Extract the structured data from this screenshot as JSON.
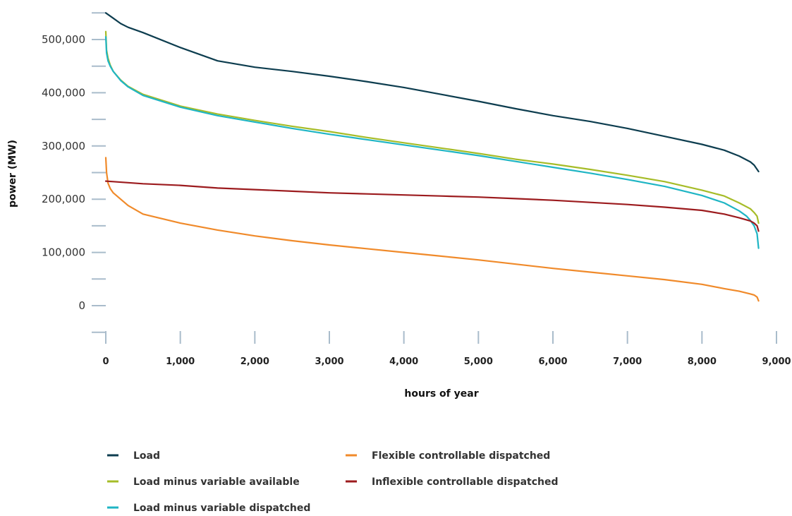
{
  "chart_data": {
    "type": "line",
    "title": "",
    "xlabel": "hours of year",
    "ylabel": "power (MW)",
    "xlim": [
      0,
      9000
    ],
    "ylim": [
      -50000,
      550000
    ],
    "x_ticks": [
      0,
      1000,
      2000,
      3000,
      4000,
      5000,
      6000,
      7000,
      8000,
      9000
    ],
    "x_tick_labels": [
      "0",
      "1,000",
      "2,000",
      "3,000",
      "4,000",
      "5,000",
      "6,000",
      "7,000",
      "8,000",
      "9,000"
    ],
    "y_ticks": [
      0,
      100000,
      200000,
      300000,
      400000,
      500000
    ],
    "y_tick_labels": [
      "0",
      "100,000",
      "200,000",
      "300,000",
      "400,000",
      "500,000"
    ],
    "y_minor_ticks": [
      -50000,
      50000,
      150000,
      250000,
      350000,
      450000,
      550000
    ],
    "grid": false,
    "legend_position": "bottom",
    "series": [
      {
        "name": "Load",
        "color": "#0d3d4f",
        "x": [
          0,
          100,
          200,
          300,
          500,
          1000,
          1500,
          2000,
          2500,
          3000,
          3500,
          4000,
          4500,
          5000,
          5500,
          6000,
          6500,
          7000,
          7500,
          8000,
          8300,
          8500,
          8650,
          8700,
          8760
        ],
        "y": [
          550000,
          540000,
          530000,
          523000,
          513000,
          485000,
          460000,
          448000,
          440000,
          431000,
          421000,
          410000,
          397000,
          384000,
          370000,
          357000,
          346000,
          333000,
          318000,
          303000,
          292000,
          281000,
          270000,
          264000,
          252000
        ]
      },
      {
        "name": "Load minus variable available",
        "color": "#a6bc28",
        "x": [
          0,
          10,
          30,
          60,
          100,
          200,
          300,
          500,
          1000,
          1500,
          2000,
          2500,
          3000,
          3500,
          4000,
          4500,
          5000,
          5500,
          6000,
          6500,
          7000,
          7500,
          8000,
          8300,
          8500,
          8650,
          8700,
          8740,
          8760
        ],
        "y": [
          515000,
          480000,
          465000,
          452000,
          440000,
          424000,
          412000,
          397000,
          375000,
          360000,
          348000,
          337000,
          327000,
          316000,
          306000,
          296000,
          286000,
          275000,
          266000,
          256000,
          245000,
          233000,
          217000,
          206000,
          193000,
          182000,
          175000,
          168000,
          155000
        ]
      },
      {
        "name": "Load minus variable dispatched",
        "color": "#1fb5c4",
        "x": [
          0,
          10,
          30,
          60,
          100,
          200,
          300,
          500,
          1000,
          1500,
          2000,
          2500,
          3000,
          3500,
          4000,
          4500,
          5000,
          5500,
          6000,
          6500,
          7000,
          7500,
          8000,
          8300,
          8500,
          8600,
          8650,
          8700,
          8740,
          8760
        ],
        "y": [
          505000,
          475000,
          460000,
          450000,
          440000,
          423000,
          411000,
          395000,
          373000,
          357000,
          345000,
          333000,
          322000,
          312000,
          302000,
          292000,
          282000,
          271000,
          260000,
          249000,
          237000,
          224000,
          207000,
          193000,
          178000,
          168000,
          160000,
          150000,
          135000,
          108000
        ]
      },
      {
        "name": "Flexible controllable dispatched",
        "color": "#f08a2a",
        "x": [
          0,
          10,
          30,
          60,
          100,
          200,
          300,
          500,
          1000,
          1500,
          2000,
          2500,
          3000,
          3500,
          4000,
          4500,
          5000,
          5500,
          6000,
          6500,
          7000,
          7500,
          8000,
          8300,
          8500,
          8650,
          8700,
          8740,
          8760
        ],
        "y": [
          278000,
          250000,
          230000,
          220000,
          212000,
          200000,
          188000,
          172000,
          155000,
          142000,
          131000,
          122000,
          114000,
          107000,
          100000,
          93000,
          86000,
          78000,
          70000,
          63000,
          56000,
          49000,
          40000,
          32000,
          27000,
          22000,
          20000,
          16000,
          9000
        ]
      },
      {
        "name": "Inflexible controllable dispatched",
        "color": "#9c1b1e",
        "x": [
          0,
          100,
          300,
          500,
          1000,
          1500,
          2000,
          2500,
          3000,
          3500,
          4000,
          4500,
          5000,
          5500,
          6000,
          6500,
          7000,
          7500,
          8000,
          8300,
          8500,
          8650,
          8700,
          8740,
          8760
        ],
        "y": [
          234000,
          233000,
          231000,
          229000,
          226000,
          221000,
          218000,
          215000,
          212000,
          210000,
          208000,
          206000,
          204000,
          201000,
          198000,
          194000,
          190000,
          185000,
          179000,
          172000,
          165000,
          159000,
          155000,
          150000,
          140000
        ]
      }
    ]
  }
}
